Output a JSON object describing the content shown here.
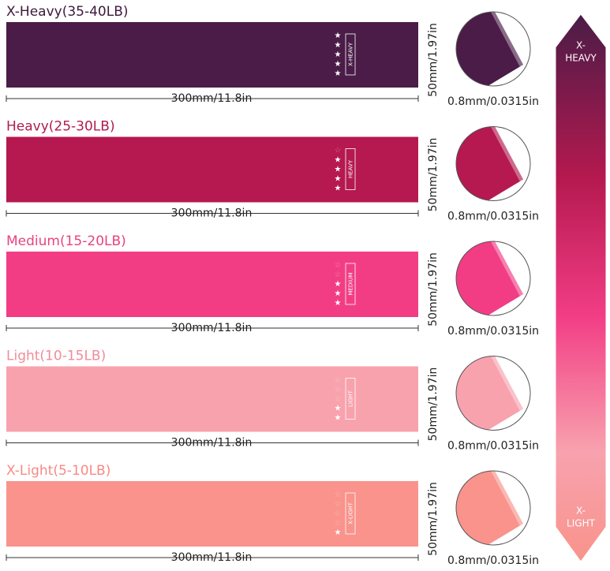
{
  "bands": [
    {
      "title": "X-Heavy(35-40LB)",
      "label": "X-HEAVY",
      "stars": 5,
      "length": "300mm/11.8in",
      "width": "50mm/1.97in",
      "thickness": "0.8mm/0.0315in",
      "color": "#4a1c47",
      "title_color": "#3d1a3c"
    },
    {
      "title": "Heavy(25-30LB)",
      "label": "HEAVY",
      "stars": 4,
      "length": "300mm/11.8in",
      "width": "50mm/1.97in",
      "thickness": "0.8mm/0.0315in",
      "color": "#b5194f",
      "title_color": "#b11b4e"
    },
    {
      "title": "Medium(15-20LB)",
      "label": "MEDIUM",
      "stars": 3,
      "length": "300mm/11.8in",
      "width": "50mm/1.97in",
      "thickness": "0.8mm/0.0315in",
      "color": "#f23d85",
      "title_color": "#e8437f"
    },
    {
      "title": "Light(10-15LB)",
      "label": "LIGHT",
      "stars": 2,
      "length": "300mm/11.8in",
      "width": "50mm/1.97in",
      "thickness": "0.8mm/0.0315in",
      "color": "#f8a2ae",
      "title_color": "#f08c9a"
    },
    {
      "title": "X-Light(5-10LB)",
      "label": "X-LIGHT",
      "stars": 1,
      "length": "300mm/11.8in",
      "width": "50mm/1.97in",
      "thickness": "0.8mm/0.0315in",
      "color": "#f9938b",
      "title_color": "#f58a85"
    }
  ],
  "arrow": {
    "top": [
      "X-",
      "HEAVY"
    ],
    "bottom": [
      "X-",
      "LIGHT"
    ]
  }
}
